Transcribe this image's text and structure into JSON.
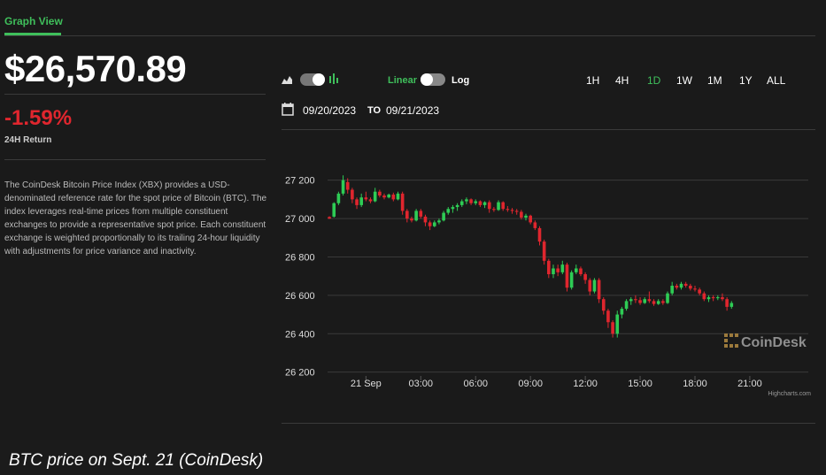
{
  "tab": {
    "label": "Graph View"
  },
  "price": {
    "value": "$26,570.89",
    "change": "-1.59%",
    "change_label": "24H Return"
  },
  "description": "The CoinDesk Bitcoin Price Index (XBX) provides a USD-denominated reference rate for the spot price of Bitcoin (BTC). The index leverages real-time prices from multiple constituent exchanges to provide a representative spot price. Each constituent exchange is weighted proportionally to its trailing 24-hour liquidity with adjustments for price variance and inactivity.",
  "controls": {
    "linear_label": "Linear",
    "log_label": "Log",
    "ranges": [
      "1H",
      "4H",
      "1D",
      "1W",
      "1M",
      "1Y",
      "ALL"
    ],
    "active_range": "1D",
    "date_from": "09/20/2023",
    "date_to_label": "TO",
    "date_to": "09/21/2023"
  },
  "colors": {
    "up": "#2ecc55",
    "down": "#e0262e",
    "accent": "#3fbf5b",
    "negative": "#e0262e"
  },
  "watermark": "CoinDesk",
  "credit": "Highcharts.com",
  "caption": "BTC price on Sept. 21 (CoinDesk)",
  "chart_data": {
    "type": "candlestick",
    "x_ticks": [
      "21 Sep",
      "03:00",
      "06:00",
      "09:00",
      "12:00",
      "15:00",
      "18:00",
      "21:00"
    ],
    "x_tick_hours": [
      0,
      3,
      6,
      9,
      12,
      15,
      18,
      21
    ],
    "y_ticks": [
      27200,
      27000,
      26800,
      26600,
      26400,
      26200
    ],
    "y_tick_labels": [
      "27 200",
      "27 000",
      "26 800",
      "26 600",
      "26 400",
      "26 200"
    ],
    "ylim": [
      26180,
      27240
    ],
    "xlim_hours": [
      -2.1,
      24.2
    ],
    "candle_hours": 0.25,
    "candles": [
      [
        -2.0,
        27008,
        27012,
        26998,
        27000
      ],
      [
        -1.75,
        27010,
        27085,
        27005,
        27080
      ],
      [
        -1.5,
        27080,
        27140,
        27070,
        27130
      ],
      [
        -1.25,
        27130,
        27225,
        27120,
        27200
      ],
      [
        -1.0,
        27190,
        27210,
        27130,
        27150
      ],
      [
        -0.75,
        27150,
        27160,
        27080,
        27100
      ],
      [
        -0.5,
        27100,
        27110,
        27050,
        27070
      ],
      [
        -0.25,
        27070,
        27130,
        27060,
        27110
      ],
      [
        0.0,
        27110,
        27140,
        27090,
        27100
      ],
      [
        0.25,
        27100,
        27110,
        27080,
        27090
      ],
      [
        0.5,
        27090,
        27160,
        27085,
        27140
      ],
      [
        0.75,
        27140,
        27150,
        27110,
        27120
      ],
      [
        1.0,
        27120,
        27130,
        27100,
        27110
      ],
      [
        1.25,
        27110,
        27130,
        27105,
        27125
      ],
      [
        1.5,
        27125,
        27135,
        27090,
        27100
      ],
      [
        1.75,
        27100,
        27140,
        27095,
        27130
      ],
      [
        2.0,
        27130,
        27140,
        27020,
        27040
      ],
      [
        2.25,
        27040,
        27050,
        26980,
        27000
      ],
      [
        2.5,
        27000,
        27010,
        26980,
        26990
      ],
      [
        2.75,
        26990,
        27050,
        26985,
        27040
      ],
      [
        3.0,
        27040,
        27050,
        27000,
        27010
      ],
      [
        3.25,
        27010,
        27020,
        26960,
        26980
      ],
      [
        3.5,
        26980,
        26990,
        26940,
        26960
      ],
      [
        3.75,
        26960,
        26990,
        26955,
        26980
      ],
      [
        4.0,
        26980,
        27000,
        26970,
        26990
      ],
      [
        4.25,
        26990,
        27040,
        26985,
        27030
      ],
      [
        4.5,
        27030,
        27060,
        27020,
        27050
      ],
      [
        4.75,
        27050,
        27070,
        27030,
        27060
      ],
      [
        5.0,
        27060,
        27080,
        27040,
        27070
      ],
      [
        5.25,
        27070,
        27100,
        27060,
        27090
      ],
      [
        5.5,
        27090,
        27110,
        27075,
        27100
      ],
      [
        5.75,
        27100,
        27105,
        27070,
        27080
      ],
      [
        6.0,
        27080,
        27100,
        27070,
        27090
      ],
      [
        6.25,
        27090,
        27095,
        27060,
        27070
      ],
      [
        6.5,
        27070,
        27090,
        27055,
        27085
      ],
      [
        6.75,
        27085,
        27095,
        27030,
        27050
      ],
      [
        7.0,
        27050,
        27060,
        27035,
        27045
      ],
      [
        7.25,
        27045,
        27095,
        27040,
        27085
      ],
      [
        7.5,
        27085,
        27090,
        27040,
        27050
      ],
      [
        7.75,
        27050,
        27065,
        27035,
        27045
      ],
      [
        8.0,
        27045,
        27055,
        27025,
        27040
      ],
      [
        8.25,
        27040,
        27050,
        27020,
        27035
      ],
      [
        8.5,
        27035,
        27045,
        26995,
        27005
      ],
      [
        8.75,
        27005,
        27025,
        26990,
        27015
      ],
      [
        9.0,
        27015,
        27020,
        26970,
        26980
      ],
      [
        9.25,
        26980,
        26990,
        26940,
        26950
      ],
      [
        9.5,
        26950,
        26960,
        26860,
        26880
      ],
      [
        9.75,
        26880,
        26890,
        26760,
        26780
      ],
      [
        10.0,
        26780,
        26790,
        26690,
        26710
      ],
      [
        10.25,
        26710,
        26760,
        26690,
        26740
      ],
      [
        10.5,
        26740,
        26760,
        26700,
        26720
      ],
      [
        10.75,
        26720,
        26780,
        26710,
        26760
      ],
      [
        11.0,
        26760,
        26770,
        26620,
        26640
      ],
      [
        11.25,
        26640,
        26730,
        26630,
        26720
      ],
      [
        11.5,
        26720,
        26760,
        26710,
        26740
      ],
      [
        11.75,
        26740,
        26750,
        26700,
        26710
      ],
      [
        12.0,
        26710,
        26720,
        26660,
        26680
      ],
      [
        12.25,
        26680,
        26690,
        26600,
        26620
      ],
      [
        12.5,
        26620,
        26690,
        26610,
        26680
      ],
      [
        12.75,
        26680,
        26690,
        26560,
        26580
      ],
      [
        13.0,
        26580,
        26590,
        26500,
        26520
      ],
      [
        13.25,
        26520,
        26530,
        26430,
        26460
      ],
      [
        13.5,
        26460,
        26470,
        26380,
        26400
      ],
      [
        13.75,
        26400,
        26520,
        26380,
        26500
      ],
      [
        14.0,
        26500,
        26540,
        26480,
        26530
      ],
      [
        14.25,
        26530,
        26580,
        26520,
        26570
      ],
      [
        14.5,
        26570,
        26590,
        26550,
        26580
      ],
      [
        14.75,
        26580,
        26600,
        26560,
        26575
      ],
      [
        15.0,
        26575,
        26590,
        26550,
        26560
      ],
      [
        15.25,
        26560,
        26590,
        26555,
        26580
      ],
      [
        15.5,
        26580,
        26620,
        26560,
        26570
      ],
      [
        15.75,
        26570,
        26580,
        26545,
        26555
      ],
      [
        16.0,
        26555,
        26580,
        26550,
        26570
      ],
      [
        16.25,
        26570,
        26580,
        26550,
        26560
      ],
      [
        16.5,
        26560,
        26620,
        26555,
        26610
      ],
      [
        16.75,
        26610,
        26670,
        26600,
        26650
      ],
      [
        17.0,
        26650,
        26660,
        26630,
        26640
      ],
      [
        17.25,
        26640,
        26670,
        26630,
        26660
      ],
      [
        17.5,
        26660,
        26670,
        26640,
        26650
      ],
      [
        17.75,
        26650,
        26660,
        26625,
        26635
      ],
      [
        18.0,
        26635,
        26650,
        26620,
        26630
      ],
      [
        18.25,
        26630,
        26640,
        26600,
        26610
      ],
      [
        18.5,
        26610,
        26620,
        26570,
        26580
      ],
      [
        18.75,
        26580,
        26600,
        26565,
        26590
      ],
      [
        19.0,
        26590,
        26600,
        26570,
        26585
      ],
      [
        19.25,
        26585,
        26600,
        26575,
        26590
      ],
      [
        19.5,
        26590,
        26610,
        26570,
        26580
      ],
      [
        19.75,
        26580,
        26590,
        26520,
        26540
      ],
      [
        20.0,
        26540,
        26570,
        26530,
        26560
      ]
    ]
  }
}
